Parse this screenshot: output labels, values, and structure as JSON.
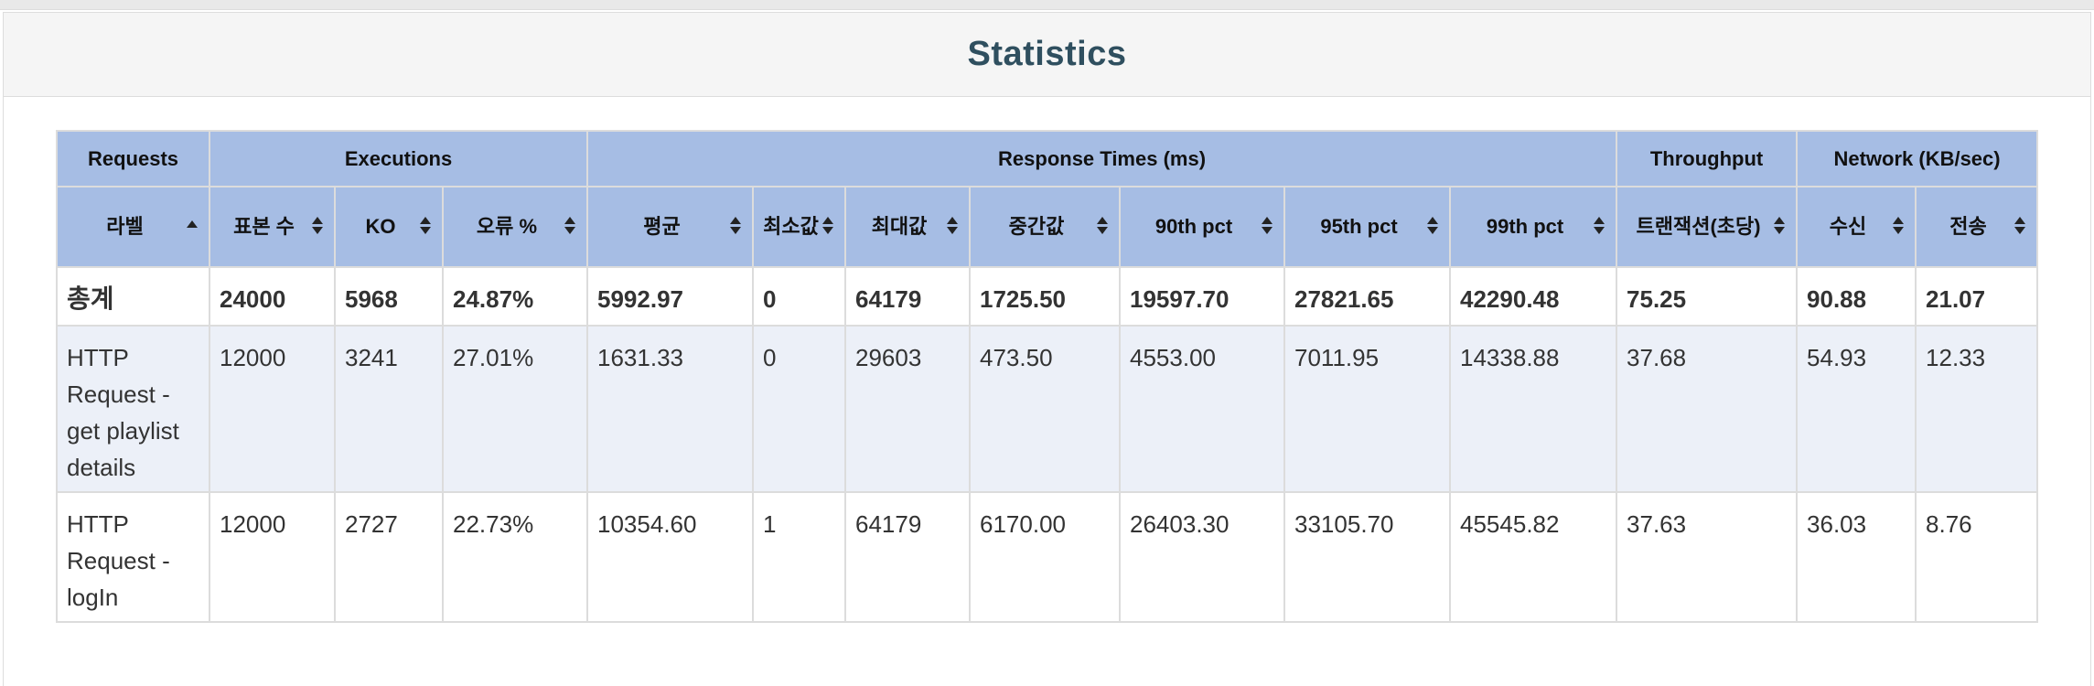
{
  "title": "Statistics",
  "groups": [
    {
      "label": "Requests",
      "span": 1
    },
    {
      "label": "Executions",
      "span": 3
    },
    {
      "label": "Response Times (ms)",
      "span": 7
    },
    {
      "label": "Throughput",
      "span": 1
    },
    {
      "label": "Network (KB/sec)",
      "span": 2
    }
  ],
  "columns": [
    "라벨",
    "표본 수",
    "KO",
    "오류 %",
    "평균",
    "최소값",
    "최대값",
    "중간값",
    "90th pct",
    "95th pct",
    "99th pct",
    "트랜잭션(초당)",
    "수신",
    "전송"
  ],
  "column_icons": [
    "sort-asc-icon",
    "sort-icon",
    "sort-icon",
    "sort-icon",
    "sort-icon",
    "sort-icon",
    "sort-icon",
    "sort-icon",
    "sort-icon",
    "sort-icon",
    "sort-icon",
    "sort-icon",
    "sort-icon",
    "sort-icon"
  ],
  "total": [
    "총계",
    "24000",
    "5968",
    "24.87%",
    "5992.97",
    "0",
    "64179",
    "1725.50",
    "19597.70",
    "27821.65",
    "42290.48",
    "75.25",
    "90.88",
    "21.07"
  ],
  "rows": [
    [
      "HTTP Request - get playlist details",
      "12000",
      "3241",
      "27.01%",
      "1631.33",
      "0",
      "29603",
      "473.50",
      "4553.00",
      "7011.95",
      "14338.88",
      "37.68",
      "54.93",
      "12.33"
    ],
    [
      "HTTP Request - logIn",
      "12000",
      "2727",
      "22.73%",
      "10354.60",
      "1",
      "64179",
      "6170.00",
      "26403.30",
      "33105.70",
      "45545.82",
      "37.63",
      "36.03",
      "8.76"
    ]
  ],
  "colors": {
    "header_bg": "#a6bde4",
    "row_alt_bg": "#ecf0f8",
    "title_color": "#2f4f5f"
  }
}
